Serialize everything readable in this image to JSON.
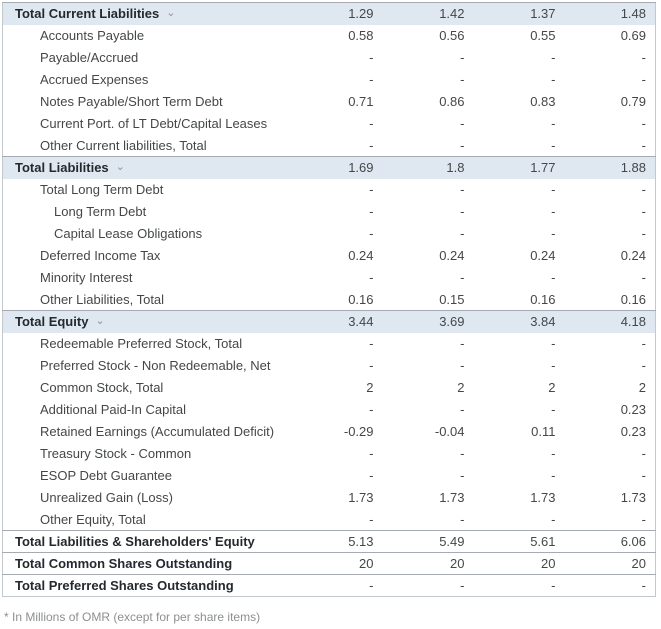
{
  "table": {
    "rows": [
      {
        "type": "section",
        "label": "Total Current Liabilities",
        "values": [
          "1.29",
          "1.42",
          "1.37",
          "1.48"
        ]
      },
      {
        "type": "item",
        "label": "Accounts Payable",
        "values": [
          "0.58",
          "0.56",
          "0.55",
          "0.69"
        ]
      },
      {
        "type": "item",
        "label": "Payable/Accrued",
        "values": [
          "-",
          "-",
          "-",
          "-"
        ]
      },
      {
        "type": "item",
        "label": "Accrued Expenses",
        "values": [
          "-",
          "-",
          "-",
          "-"
        ]
      },
      {
        "type": "item",
        "label": "Notes Payable/Short Term Debt",
        "values": [
          "0.71",
          "0.86",
          "0.83",
          "0.79"
        ]
      },
      {
        "type": "item",
        "label": "Current Port. of LT Debt/Capital Leases",
        "values": [
          "-",
          "-",
          "-",
          "-"
        ]
      },
      {
        "type": "item",
        "label": "Other Current liabilities, Total",
        "values": [
          "-",
          "-",
          "-",
          "-"
        ]
      },
      {
        "type": "section",
        "label": "Total Liabilities",
        "values": [
          "1.69",
          "1.8",
          "1.77",
          "1.88"
        ]
      },
      {
        "type": "item",
        "label": "Total Long Term Debt",
        "values": [
          "-",
          "-",
          "-",
          "-"
        ]
      },
      {
        "type": "item2",
        "label": "Long Term Debt",
        "values": [
          "-",
          "-",
          "-",
          "-"
        ]
      },
      {
        "type": "item2",
        "label": "Capital Lease Obligations",
        "values": [
          "-",
          "-",
          "-",
          "-"
        ]
      },
      {
        "type": "item",
        "label": "Deferred Income Tax",
        "values": [
          "0.24",
          "0.24",
          "0.24",
          "0.24"
        ]
      },
      {
        "type": "item",
        "label": "Minority Interest",
        "values": [
          "-",
          "-",
          "-",
          "-"
        ]
      },
      {
        "type": "item",
        "label": "Other Liabilities, Total",
        "values": [
          "0.16",
          "0.15",
          "0.16",
          "0.16"
        ]
      },
      {
        "type": "section",
        "label": "Total Equity",
        "values": [
          "3.44",
          "3.69",
          "3.84",
          "4.18"
        ]
      },
      {
        "type": "item",
        "label": "Redeemable Preferred Stock, Total",
        "values": [
          "-",
          "-",
          "-",
          "-"
        ]
      },
      {
        "type": "item",
        "label": "Preferred Stock - Non Redeemable, Net",
        "values": [
          "-",
          "-",
          "-",
          "-"
        ]
      },
      {
        "type": "item",
        "label": "Common Stock, Total",
        "values": [
          "2",
          "2",
          "2",
          "2"
        ]
      },
      {
        "type": "item",
        "label": "Additional Paid-In Capital",
        "values": [
          "-",
          "-",
          "-",
          "0.23"
        ]
      },
      {
        "type": "item",
        "label": "Retained Earnings (Accumulated Deficit)",
        "values": [
          "-0.29",
          "-0.04",
          "0.11",
          "0.23"
        ]
      },
      {
        "type": "item",
        "label": "Treasury Stock - Common",
        "values": [
          "-",
          "-",
          "-",
          "-"
        ]
      },
      {
        "type": "item",
        "label": "ESOP Debt Guarantee",
        "values": [
          "-",
          "-",
          "-",
          "-"
        ]
      },
      {
        "type": "item",
        "label": "Unrealized Gain (Loss)",
        "values": [
          "1.73",
          "1.73",
          "1.73",
          "1.73"
        ]
      },
      {
        "type": "item",
        "label": "Other Equity, Total",
        "values": [
          "-",
          "-",
          "-",
          "-"
        ]
      },
      {
        "type": "total",
        "label": "Total Liabilities & Shareholders' Equity",
        "values": [
          "5.13",
          "5.49",
          "5.61",
          "6.06"
        ]
      },
      {
        "type": "total",
        "label": "Total Common Shares Outstanding",
        "values": [
          "20",
          "20",
          "20",
          "20"
        ]
      },
      {
        "type": "total",
        "label": "Total Preferred Shares Outstanding",
        "values": [
          "-",
          "-",
          "-",
          "-"
        ]
      }
    ]
  },
  "icons": {
    "chevron_down": "⌄"
  },
  "colors": {
    "section_row_bg": "#dfe8f1",
    "separator_line": "#a5abb0",
    "outer_border": "#c3c8cc",
    "body_text": "#444749",
    "bold_text": "#24292e",
    "footnote_text": "#8c8f91",
    "chevron": "#8f9296"
  },
  "footnote": "* In Millions of OMR (except for per share items)"
}
